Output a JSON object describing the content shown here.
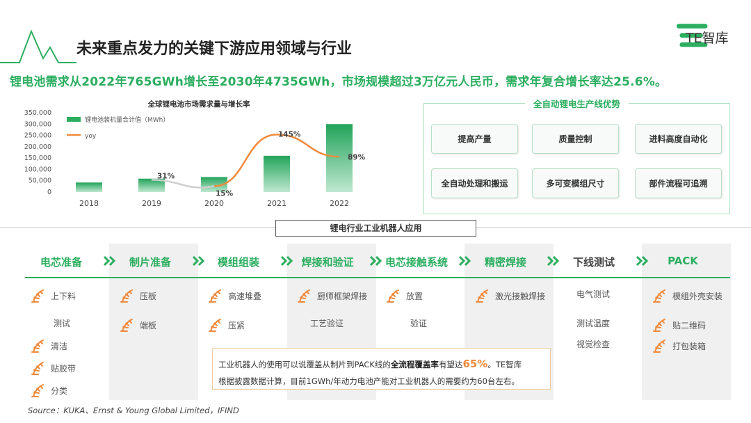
{
  "page_title": "未来重点发力的关键下游应用领域与行业",
  "logo": {
    "text": "TE智库",
    "color": "#2bae5f"
  },
  "headline": "锂电池需求从2022年765GWh增长至2030年4735GWh，市场规模超过3万亿元人民币，需求年复合增长率达25.6%。",
  "chart_data": {
    "type": "bar",
    "title": "全球锂电池市场需求量与增长率",
    "categories": [
      "2018",
      "2019",
      "2020",
      "2021",
      "2022"
    ],
    "series": [
      {
        "name": "锂电池装机量合计值（MWh）",
        "type": "bar",
        "axis": "left",
        "color": "#2bae5f",
        "values": [
          42000,
          59000,
          66000,
          160000,
          300000
        ]
      },
      {
        "name": "yoy",
        "type": "line",
        "axis": "right",
        "color": "#f08a3c",
        "values": [
          null,
          31,
          15,
          145,
          89
        ],
        "labels": [
          "",
          "31%",
          "15%",
          "145%",
          "89%"
        ]
      }
    ],
    "yticks": [
      "350,000",
      "300,000",
      "250,000",
      "200,000",
      "150,000",
      "100,000",
      "50,000",
      "0"
    ],
    "ylim": [
      0,
      350000
    ],
    "y2lim": [
      0,
      200
    ],
    "legend": "top-left",
    "grid": false
  },
  "advantages": {
    "title": "全自动锂电生产线优势",
    "items": [
      "提高产量",
      "质量控制",
      "进料高度自动化",
      "全自动处理和搬运",
      "多可变模组尺寸",
      "部件流程可追溯"
    ]
  },
  "robot_section_label": "锂电行业工业机器人应用",
  "stages": [
    {
      "label": "电芯准备",
      "items": [
        {
          "text": "上下料",
          "icon": "robot-arm-icon"
        },
        {
          "text": "测试",
          "icon": ""
        },
        {
          "text": "清洁",
          "icon": "robot-arm-icon"
        },
        {
          "text": "贴胶带",
          "icon": "robot-arm-icon"
        },
        {
          "text": "分类",
          "icon": "robot-arm-icon"
        }
      ]
    },
    {
      "label": "制片准备",
      "items": [
        {
          "text": "压板",
          "icon": "robot-arm-icon"
        },
        {
          "text": "端板",
          "icon": "robot-arm-icon"
        }
      ]
    },
    {
      "label": "模组组装",
      "items": [
        {
          "text": "高速堆叠",
          "icon": "robot-arm-icon"
        },
        {
          "text": "压紧",
          "icon": "robot-arm-icon"
        }
      ]
    },
    {
      "label": "焊接和验证",
      "items": [
        {
          "text": "厨师框架焊接",
          "icon": "robot-arm-icon"
        },
        {
          "text": "工艺验证",
          "icon": ""
        }
      ]
    },
    {
      "label": "电芯接触系统",
      "items": [
        {
          "text": "放置",
          "icon": "robot-arm-icon"
        },
        {
          "text": "验证",
          "icon": ""
        }
      ]
    },
    {
      "label": "精密焊接",
      "items": [
        {
          "text": "激光接触焊接",
          "icon": "robot-arm-icon"
        }
      ]
    },
    {
      "label": "下线测试",
      "items": [
        {
          "text": "电气测试",
          "icon": ""
        },
        {
          "text": "测试温度",
          "icon": ""
        },
        {
          "text": "视觉检查",
          "icon": ""
        }
      ]
    },
    {
      "label": "PACK",
      "items": [
        {
          "text": "模组外壳安装",
          "icon": "robot-arm-icon"
        },
        {
          "text": "贴二维码",
          "icon": "robot-arm-icon"
        },
        {
          "text": "打包装箱",
          "icon": "robot-arm-icon"
        }
      ]
    }
  ],
  "note": {
    "line1_pre": "工业机器人的使用可以说覆盖从制片到PACK线的",
    "line1_bold": "全流程覆盖率",
    "line1_mid": "有望达",
    "line1_pct": "65%",
    "line1_post": "。TE智库",
    "line2": "根据披露数据计算，目前1GWh/年动力电池产能对工业机器人的需要约为60台左右。"
  },
  "source": "Source：KUKA、Ernst & Young Global Limited，IFIND",
  "colors": {
    "accent": "#2bae5f",
    "orange": "#f08a3c",
    "gray_column": "#f0f0f0"
  }
}
